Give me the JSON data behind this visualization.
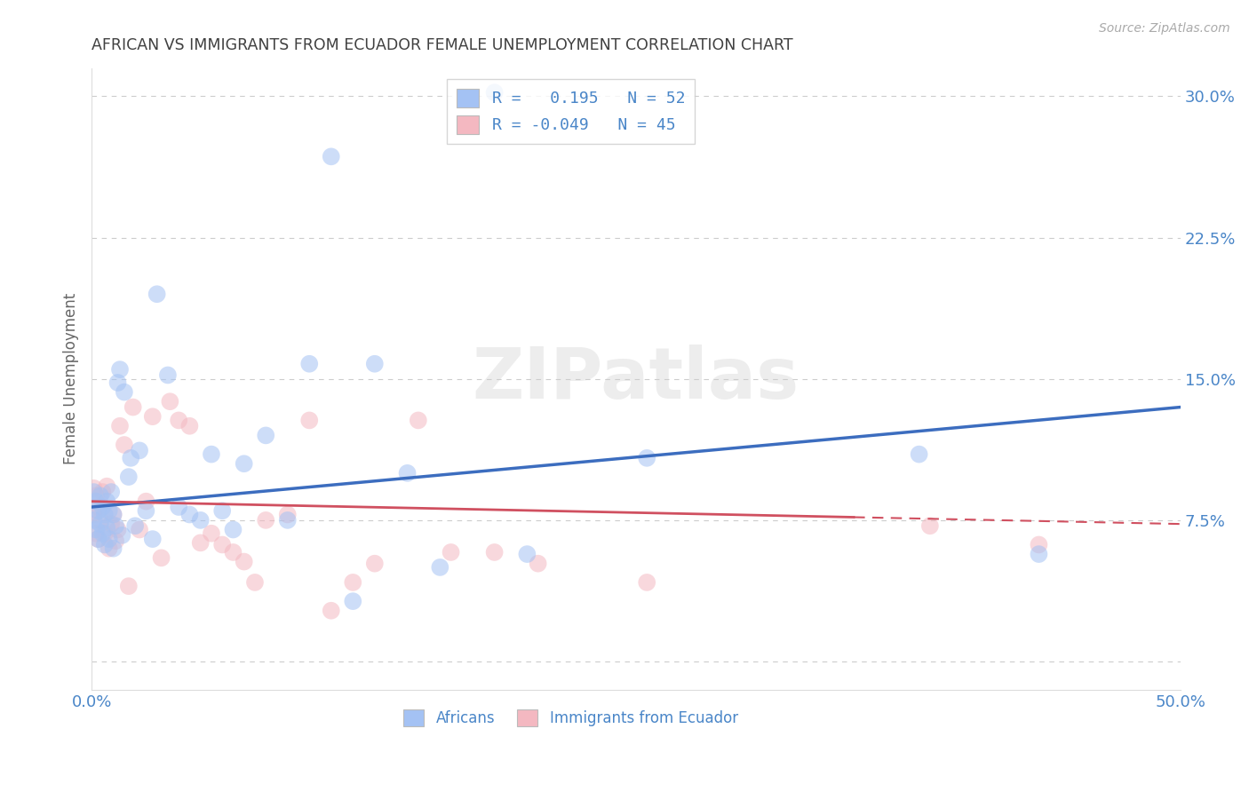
{
  "title": "AFRICAN VS IMMIGRANTS FROM ECUADOR FEMALE UNEMPLOYMENT CORRELATION CHART",
  "source": "Source: ZipAtlas.com",
  "ylabel": "Female Unemployment",
  "xlim": [
    0.0,
    0.5
  ],
  "ylim": [
    -0.015,
    0.315
  ],
  "yticks": [
    0.0,
    0.075,
    0.15,
    0.225,
    0.3
  ],
  "ytick_labels": [
    "",
    "7.5%",
    "15.0%",
    "22.5%",
    "30.0%"
  ],
  "xticks": [
    0.0,
    0.1,
    0.2,
    0.3,
    0.4,
    0.5
  ],
  "xtick_labels": [
    "0.0%",
    "",
    "",
    "",
    "",
    "50.0%"
  ],
  "watermark": "ZIPatlas",
  "blue_color": "#a4c2f4",
  "pink_color": "#f4b8c1",
  "blue_line_color": "#3c6dbf",
  "pink_line_color": "#d05060",
  "title_color": "#404040",
  "axis_label_color": "#666666",
  "tick_color": "#4a86c8",
  "grid_color": "#cccccc",
  "africans_x": [
    0.001,
    0.001,
    0.002,
    0.002,
    0.003,
    0.003,
    0.004,
    0.004,
    0.005,
    0.005,
    0.006,
    0.006,
    0.007,
    0.007,
    0.008,
    0.008,
    0.009,
    0.01,
    0.01,
    0.011,
    0.012,
    0.013,
    0.014,
    0.015,
    0.017,
    0.018,
    0.02,
    0.022,
    0.025,
    0.028,
    0.03,
    0.035,
    0.04,
    0.045,
    0.05,
    0.055,
    0.06,
    0.065,
    0.07,
    0.08,
    0.09,
    0.1,
    0.11,
    0.12,
    0.13,
    0.145,
    0.16,
    0.185,
    0.2,
    0.255,
    0.38,
    0.435
  ],
  "africans_y": [
    0.09,
    0.075,
    0.085,
    0.07,
    0.08,
    0.065,
    0.088,
    0.073,
    0.082,
    0.068,
    0.078,
    0.062,
    0.085,
    0.071,
    0.08,
    0.065,
    0.09,
    0.078,
    0.06,
    0.072,
    0.148,
    0.155,
    0.067,
    0.143,
    0.098,
    0.108,
    0.072,
    0.112,
    0.08,
    0.065,
    0.195,
    0.152,
    0.082,
    0.078,
    0.075,
    0.11,
    0.08,
    0.07,
    0.105,
    0.12,
    0.075,
    0.158,
    0.268,
    0.032,
    0.158,
    0.1,
    0.05,
    0.302,
    0.057,
    0.108,
    0.11,
    0.057
  ],
  "ecuador_x": [
    0.001,
    0.001,
    0.002,
    0.002,
    0.003,
    0.003,
    0.004,
    0.005,
    0.006,
    0.007,
    0.008,
    0.009,
    0.01,
    0.011,
    0.012,
    0.013,
    0.015,
    0.017,
    0.019,
    0.022,
    0.025,
    0.028,
    0.032,
    0.036,
    0.04,
    0.045,
    0.05,
    0.055,
    0.06,
    0.065,
    0.07,
    0.075,
    0.08,
    0.09,
    0.1,
    0.11,
    0.12,
    0.13,
    0.15,
    0.165,
    0.185,
    0.205,
    0.255,
    0.385,
    0.435
  ],
  "ecuador_y": [
    0.092,
    0.078,
    0.088,
    0.068,
    0.082,
    0.065,
    0.075,
    0.09,
    0.068,
    0.093,
    0.06,
    0.073,
    0.078,
    0.064,
    0.07,
    0.125,
    0.115,
    0.04,
    0.135,
    0.07,
    0.085,
    0.13,
    0.055,
    0.138,
    0.128,
    0.125,
    0.063,
    0.068,
    0.062,
    0.058,
    0.053,
    0.042,
    0.075,
    0.078,
    0.128,
    0.027,
    0.042,
    0.052,
    0.128,
    0.058,
    0.058,
    0.052,
    0.042,
    0.072,
    0.062
  ],
  "blue_trend_x0": 0.0,
  "blue_trend_y0": 0.082,
  "blue_trend_x1": 0.5,
  "blue_trend_y1": 0.135,
  "pink_trend_x0": 0.0,
  "pink_trend_y0": 0.085,
  "pink_trend_x1": 0.5,
  "pink_trend_y1": 0.073
}
